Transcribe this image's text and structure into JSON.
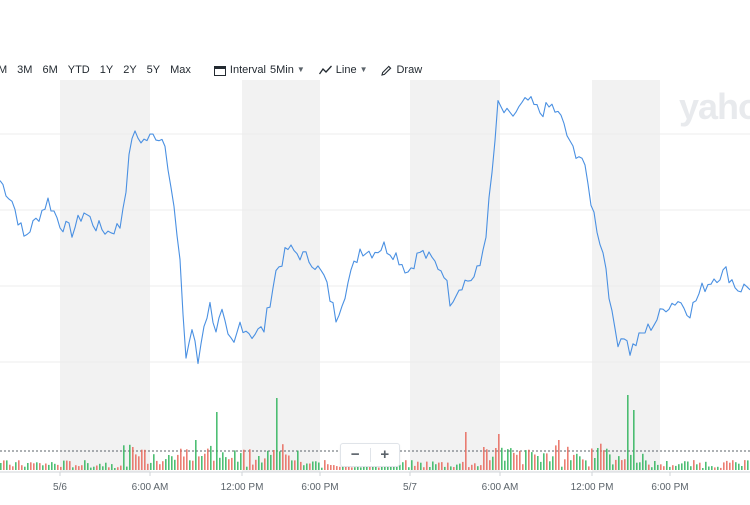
{
  "toolbar": {
    "ranges": [
      "M",
      "3M",
      "6M",
      "YTD",
      "1Y",
      "2Y",
      "5Y",
      "Max"
    ],
    "interval_label": "Interval",
    "interval_value": "5Min",
    "chart_type_label": "Line",
    "draw_label": "Draw"
  },
  "logo_text": "yaho",
  "zoom": {
    "minus": "−",
    "plus": "+"
  },
  "colors": {
    "line": "#4a90e2",
    "volume_up": "#2fb45c",
    "volume_down": "#e8675b",
    "shade": "#f2f2f2",
    "grid": "#ececec"
  },
  "chart_data": {
    "type": "line",
    "title": "",
    "xlabel": "",
    "ylabel": "",
    "x_ticks": [
      "5/6",
      "6:00 AM",
      "12:00 PM",
      "6:00 PM",
      "5/7",
      "6:00 AM",
      "12:00 PM",
      "6:00 PM"
    ],
    "price_range_hint": "relative 0-100 (no y-axis labels visible)",
    "price_keypoints": [
      [
        0,
        70
      ],
      [
        4,
        63
      ],
      [
        8,
        50
      ],
      [
        12,
        56
      ],
      [
        16,
        63
      ],
      [
        20,
        55
      ],
      [
        24,
        52
      ],
      [
        28,
        59
      ],
      [
        32,
        54
      ],
      [
        36,
        52
      ],
      [
        40,
        54
      ],
      [
        42,
        68
      ],
      [
        44,
        86
      ],
      [
        48,
        84
      ],
      [
        52,
        86
      ],
      [
        55,
        84
      ],
      [
        58,
        60
      ],
      [
        60,
        40
      ],
      [
        62,
        8
      ],
      [
        64,
        18
      ],
      [
        66,
        6
      ],
      [
        68,
        20
      ],
      [
        70,
        26
      ],
      [
        72,
        18
      ],
      [
        74,
        23
      ],
      [
        76,
        14
      ],
      [
        78,
        12
      ],
      [
        80,
        20
      ],
      [
        84,
        16
      ],
      [
        88,
        18
      ],
      [
        90,
        28
      ],
      [
        92,
        38
      ],
      [
        96,
        46
      ],
      [
        100,
        44
      ],
      [
        104,
        42
      ],
      [
        108,
        36
      ],
      [
        112,
        22
      ],
      [
        116,
        34
      ],
      [
        120,
        46
      ],
      [
        124,
        45
      ],
      [
        128,
        47
      ],
      [
        132,
        44
      ],
      [
        136,
        38
      ],
      [
        140,
        45
      ],
      [
        144,
        42
      ],
      [
        148,
        38
      ],
      [
        150,
        28
      ],
      [
        154,
        34
      ],
      [
        158,
        36
      ],
      [
        160,
        40
      ],
      [
        162,
        52
      ],
      [
        164,
        72
      ],
      [
        166,
        96
      ],
      [
        170,
        92
      ],
      [
        176,
        98
      ],
      [
        180,
        94
      ],
      [
        184,
        96
      ],
      [
        188,
        90
      ],
      [
        190,
        82
      ],
      [
        194,
        78
      ],
      [
        198,
        58
      ],
      [
        202,
        40
      ],
      [
        204,
        22
      ],
      [
        206,
        14
      ],
      [
        208,
        16
      ],
      [
        210,
        10
      ],
      [
        214,
        16
      ],
      [
        218,
        20
      ],
      [
        222,
        26
      ],
      [
        226,
        28
      ],
      [
        230,
        24
      ],
      [
        234,
        32
      ],
      [
        238,
        36
      ],
      [
        242,
        38
      ],
      [
        246,
        32
      ],
      [
        250,
        33
      ]
    ],
    "volume_note": "intraday volume histogram, green = up bar, red = down bar, relative height 0-100"
  }
}
